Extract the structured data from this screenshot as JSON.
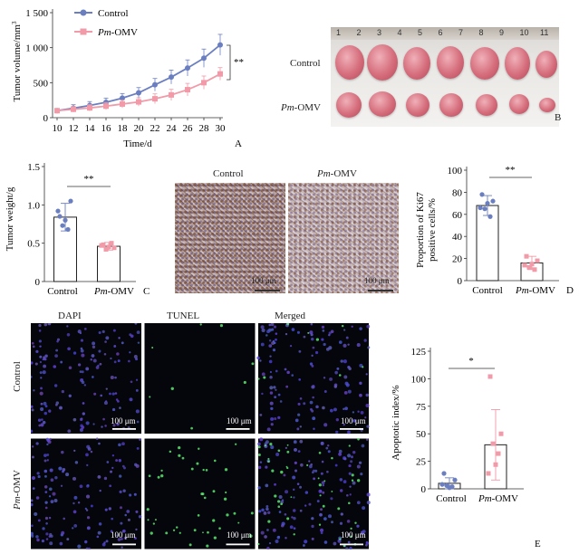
{
  "panels": {
    "A": {
      "letter": "A",
      "ylabel_prefix": "Tumor volume/mm",
      "ylabel_sup": "3",
      "xlabel": "Time/d",
      "sig": "**",
      "legend": [
        {
          "name": "Control",
          "prefix": "",
          "color": "#6b7fc0"
        },
        {
          "name": "Pm-OMV",
          "prefix": "Pm",
          "suffix": "-OMV",
          "color": "#f19aa8"
        }
      ],
      "chart_data": {
        "type": "line",
        "x": [
          10,
          12,
          14,
          16,
          18,
          20,
          22,
          24,
          26,
          28,
          30
        ],
        "xticks": [
          "10",
          "12",
          "14",
          "16",
          "18",
          "20",
          "22",
          "24",
          "26",
          "28",
          "30"
        ],
        "yticks": [
          "0",
          "500",
          "1 000",
          "1 500"
        ],
        "ylim": [
          0,
          1500
        ],
        "series": [
          {
            "name": "Control",
            "values": [
              100,
              135,
              175,
              220,
              280,
              355,
              470,
              580,
              710,
              850,
              1040
            ],
            "errors": [
              30,
              50,
              55,
              60,
              65,
              75,
              90,
              100,
              115,
              130,
              150
            ]
          },
          {
            "name": "Pm-OMV",
            "values": [
              100,
              120,
              140,
              165,
              195,
              225,
              270,
              325,
              400,
              500,
              625
            ],
            "errors": [
              25,
              40,
              45,
              50,
              55,
              60,
              70,
              80,
              90,
              95,
              90
            ]
          }
        ]
      }
    },
    "B": {
      "letter": "B",
      "row_control": "Control",
      "row_omv_prefix": "Pm",
      "row_omv_suffix": "-OMV",
      "ruler_numbers": [
        "1",
        "2",
        "3",
        "4",
        "5",
        "6",
        "7",
        "8",
        "9",
        "10",
        "11"
      ]
    },
    "C": {
      "letter": "C",
      "ylabel": "Tumor weight/g",
      "sig": "**",
      "cat_control": "Control",
      "cat_omv_prefix": "Pm",
      "cat_omv_suffix": "-OMV",
      "chart_data": {
        "type": "bar",
        "categories": [
          "Control",
          "Pm-OMV"
        ],
        "values": [
          0.84,
          0.46
        ],
        "errors": [
          0.18,
          0.05
        ],
        "points": [
          [
            0.85,
            1.05,
            0.73,
            0.68,
            0.8,
            0.92
          ],
          [
            0.48,
            0.44,
            0.42,
            0.5,
            0.45,
            0.47
          ]
        ],
        "yticks": [
          "0",
          "0.5",
          "1.0",
          "1.5"
        ],
        "ylim": [
          0,
          1.5
        ]
      }
    },
    "IHC": {
      "label_control": "Control",
      "label_omv_prefix": "Pm",
      "label_omv_suffix": "-OMV",
      "scale": "100 μm"
    },
    "D": {
      "letter": "D",
      "ylabel_line1": "Proportion of Ki67",
      "ylabel_line2": "positive cells/%",
      "sig": "**",
      "cat_control": "Control",
      "cat_omv_prefix": "Pm",
      "cat_omv_suffix": "-OMV",
      "chart_data": {
        "type": "bar",
        "categories": [
          "Control",
          "Pm-OMV"
        ],
        "values": [
          68,
          16
        ],
        "errors": [
          9,
          6
        ],
        "points": [
          [
            78,
            72,
            65,
            58,
            70,
            66
          ],
          [
            22,
            18,
            12,
            10,
            15,
            14
          ]
        ],
        "yticks": [
          "0",
          "20",
          "40",
          "60",
          "80",
          "100"
        ],
        "ylim": [
          0,
          100
        ]
      }
    },
    "TUNEL": {
      "col_dapi": "DAPI",
      "col_tunel": "TUNEL",
      "col_merged": "Merged",
      "row_control": "Control",
      "row_omv_prefix": "Pm",
      "row_omv_suffix": "-OMV",
      "scale": "100 μm"
    },
    "E": {
      "letter": "E",
      "ylabel": "Apoptotic index/%",
      "sig": "*",
      "cat_control": "Control",
      "cat_omv_prefix": "Pm",
      "cat_omv_suffix": "-OMV",
      "chart_data": {
        "type": "bar",
        "categories": [
          "Control",
          "Pm-OMV"
        ],
        "values": [
          5,
          40
        ],
        "errors": [
          5,
          32
        ],
        "points": [
          [
            14,
            8,
            3,
            2,
            1,
            4
          ],
          [
            102,
            50,
            41,
            32,
            22,
            14
          ]
        ],
        "yticks": [
          "0",
          "25",
          "50",
          "75",
          "100",
          "125"
        ],
        "ylim": [
          0,
          125
        ]
      }
    }
  },
  "colors": {
    "control": "#6b7fc0",
    "omv": "#f19aa8",
    "control_dots": "#6b7fc0",
    "omv_dots": "#f19aa8"
  }
}
